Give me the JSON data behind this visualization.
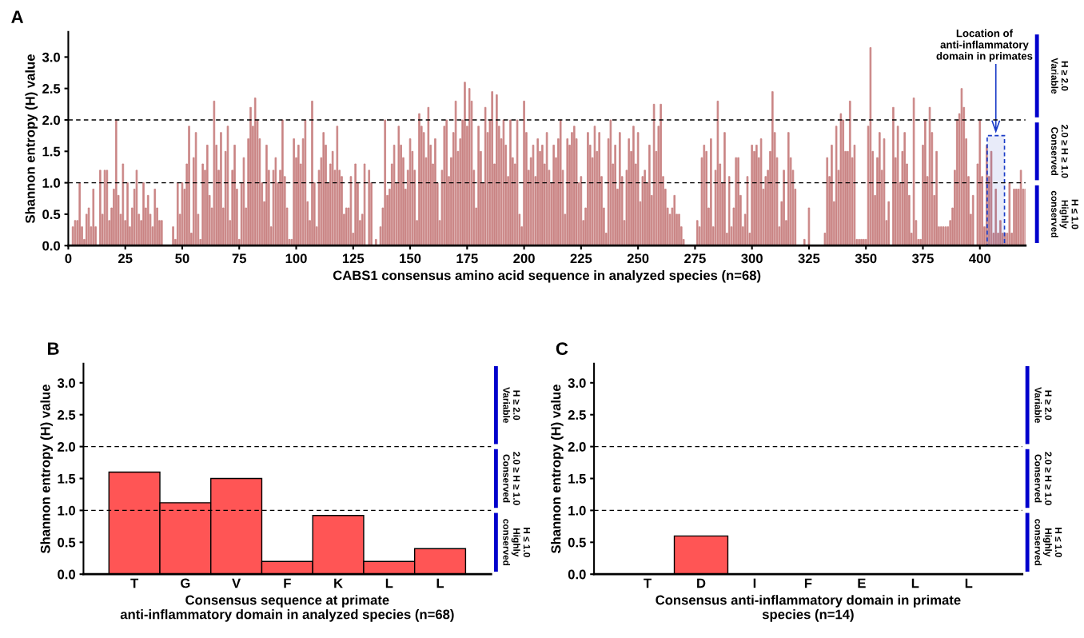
{
  "chart_data": [
    {
      "type": "bar",
      "title": "A",
      "xlabel": "CABS1 consensus amino acid sequence in analyzed species (n=68)",
      "ylabel": "Shannon entropy (H) value",
      "color": "#b85c5c",
      "x": [
        1,
        2,
        3,
        4,
        5,
        6,
        7,
        8,
        9,
        10,
        11,
        12,
        13,
        14,
        15,
        16,
        17,
        18,
        19,
        20,
        21,
        22,
        23,
        24,
        25,
        26,
        27,
        28,
        29,
        30,
        31,
        32,
        33,
        34,
        35,
        36,
        37,
        38,
        39,
        40,
        41,
        42,
        43,
        44,
        45,
        46,
        47,
        48,
        49,
        50,
        51,
        52,
        53,
        54,
        55,
        56,
        57,
        58,
        59,
        60,
        61,
        62,
        63,
        64,
        65,
        66,
        67,
        68,
        69,
        70,
        71,
        72,
        73,
        74,
        75,
        76,
        77,
        78,
        79,
        80,
        81,
        82,
        83,
        84,
        85,
        86,
        87,
        88,
        89,
        90,
        91,
        92,
        93,
        94,
        95,
        96,
        97,
        98,
        99,
        100,
        101,
        102,
        103,
        104,
        105,
        106,
        107,
        108,
        109,
        110,
        111,
        112,
        113,
        114,
        115,
        116,
        117,
        118,
        119,
        120,
        121,
        122,
        123,
        124,
        125,
        126,
        127,
        128,
        129,
        130,
        131,
        132,
        133,
        134,
        135,
        136,
        137,
        138,
        139,
        140,
        141,
        142,
        143,
        144,
        145,
        146,
        147,
        148,
        149,
        150,
        151,
        152,
        153,
        154,
        155,
        156,
        157,
        158,
        159,
        160,
        161,
        162,
        163,
        164,
        165,
        166,
        167,
        168,
        169,
        170,
        171,
        172,
        173,
        174,
        175,
        176,
        177,
        178,
        179,
        180,
        181,
        182,
        183,
        184,
        185,
        186,
        187,
        188,
        189,
        190,
        191,
        192,
        193,
        194,
        195,
        196,
        197,
        198,
        199,
        200,
        201,
        202,
        203,
        204,
        205,
        206,
        207,
        208,
        209,
        210,
        211,
        212,
        213,
        214,
        215,
        216,
        217,
        218,
        219,
        220,
        221,
        222,
        223,
        224,
        225,
        226,
        227,
        228,
        229,
        230,
        231,
        232,
        233,
        234,
        235,
        236,
        237,
        238,
        239,
        240,
        241,
        242,
        243,
        244,
        245,
        246,
        247,
        248,
        249,
        250,
        251,
        252,
        253,
        254,
        255,
        256,
        257,
        258,
        259,
        260,
        261,
        262,
        263,
        264,
        265,
        266,
        267,
        268,
        269,
        270,
        271,
        272,
        273,
        274,
        275,
        276,
        277,
        278,
        279,
        280,
        281,
        282,
        283,
        284,
        285,
        286,
        287,
        288,
        289,
        290,
        291,
        292,
        293,
        294,
        295,
        296,
        297,
        298,
        299,
        300,
        301,
        302,
        303,
        304,
        305,
        306,
        307,
        308,
        309,
        310,
        311,
        312,
        313,
        314,
        315,
        316,
        317,
        318,
        319,
        320,
        321,
        322,
        323,
        324,
        325,
        326,
        327,
        328,
        329,
        330,
        331,
        332,
        333,
        334,
        335,
        336,
        337,
        338,
        339,
        340,
        341,
        342,
        343,
        344,
        345,
        346,
        347,
        348,
        349,
        350,
        351,
        352,
        353,
        354,
        355,
        356,
        357,
        358,
        359,
        360,
        361,
        362,
        363,
        364,
        365,
        366,
        367,
        368,
        369,
        370,
        371,
        372,
        373,
        374,
        375,
        376,
        377,
        378,
        379,
        380,
        381,
        382,
        383,
        384,
        385,
        386,
        387,
        388,
        389,
        390,
        391,
        392,
        393,
        394,
        395,
        396,
        397,
        398,
        399,
        400,
        401,
        402,
        403,
        404,
        405,
        406,
        407,
        408,
        409,
        410,
        411,
        412,
        413,
        414,
        415,
        416,
        417,
        418,
        419,
        420
      ],
      "values": [
        0.0,
        0.3,
        0.4,
        0.4,
        1.0,
        0.3,
        0.1,
        0.5,
        0.6,
        0.3,
        0.9,
        0.3,
        0.0,
        1.2,
        0.5,
        1.2,
        1.2,
        0.4,
        0.6,
        0.9,
        2.0,
        0.8,
        0.5,
        1.3,
        0.4,
        1.0,
        0.3,
        0.6,
        0.9,
        1.2,
        0.5,
        0.4,
        1.0,
        0.6,
        0.8,
        0.5,
        0.3,
        0.9,
        0.6,
        0.4,
        0.4,
        0.0,
        0.0,
        0.0,
        0.0,
        0.3,
        0.1,
        1.0,
        0.5,
        1.0,
        0.9,
        1.3,
        1.9,
        0.2,
        1.4,
        1.8,
        0.5,
        0.1,
        1.3,
        1.2,
        1.6,
        0.8,
        0.6,
        2.3,
        1.6,
        1.2,
        1.8,
        0.6,
        1.5,
        1.9,
        0.4,
        1.2,
        1.6,
        0.9,
        0.1,
        1.0,
        1.4,
        0.6,
        1.7,
        2.2,
        1.9,
        2.35,
        2.0,
        1.7,
        1.0,
        0.7,
        1.6,
        1.2,
        0.3,
        1.2,
        1.4,
        1.0,
        1.2,
        2.0,
        1.1,
        0.6,
        0.1,
        0.1,
        1.7,
        1.4,
        1.6,
        1.3,
        1.7,
        2.0,
        0.7,
        0.4,
        2.3,
        1.0,
        0.3,
        1.2,
        1.4,
        1.8,
        1.6,
        1.0,
        1.3,
        1.5,
        1.2,
        1.9,
        1.2,
        1.1,
        0.5,
        0.6,
        0.6,
        1.1,
        0.2,
        1.3,
        1.0,
        0.4,
        0.5,
        1.3,
        0.0,
        1.2,
        1.0,
        0.0,
        0.1,
        0.0,
        0.3,
        0.6,
        2.0,
        0.8,
        0.9,
        1.3,
        1.6,
        1.0,
        1.9,
        1.6,
        1.4,
        0.9,
        1.2,
        1.7,
        1.5,
        1.2,
        0.4,
        2.1,
        1.9,
        1.8,
        1.4,
        2.2,
        1.6,
        1.3,
        1.7,
        1.0,
        0.4,
        1.2,
        1.9,
        2.0,
        1.1,
        1.4,
        1.8,
        2.3,
        1.5,
        1.7,
        2.0,
        2.6,
        1.9,
        2.5,
        2.3,
        1.2,
        0.6,
        1.9,
        1.5,
        1.0,
        2.2,
        1.8,
        2.0,
        2.45,
        1.3,
        2.4,
        1.9,
        1.7,
        2.0,
        1.6,
        1.1,
        2.0,
        1.4,
        1.3,
        2.0,
        0.5,
        0.3,
        2.3,
        1.8,
        1.2,
        1.4,
        1.6,
        1.1,
        1.7,
        1.5,
        1.6,
        1.3,
        1.8,
        1.2,
        1.0,
        1.6,
        1.4,
        1.7,
        2.0,
        1.2,
        0.5,
        1.7,
        1.6,
        1.8,
        1.9,
        1.7,
        1.0,
        1.1,
        0.4,
        0.6,
        1.8,
        1.6,
        1.4,
        1.9,
        1.5,
        1.8,
        1.1,
        0.6,
        0.2,
        1.7,
        2.0,
        1.3,
        1.6,
        0.9,
        1.8,
        1.1,
        0.4,
        1.2,
        1.7,
        1.5,
        1.9,
        1.3,
        1.8,
        0.7,
        1.1,
        1.2,
        1.0,
        1.6,
        0.8,
        2.25,
        1.5,
        1.9,
        2.25,
        1.1,
        0.9,
        0.6,
        0.5,
        0.6,
        0.8,
        0.5,
        0.5,
        0.3,
        0.1,
        0.0,
        0.0,
        0.0,
        0.0,
        0.0,
        0.4,
        0.3,
        1.4,
        1.6,
        1.5,
        0.6,
        1.7,
        0.3,
        1.2,
        2.3,
        1.3,
        1.0,
        1.8,
        0.2,
        1.1,
        0.3,
        0.6,
        1.4,
        1.4,
        0.8,
        0.3,
        0.5,
        1.1,
        0.2,
        1.6,
        1.5,
        1.6,
        1.4,
        1.7,
        0.9,
        1.1,
        1.2,
        1.5,
        2.45,
        1.8,
        1.4,
        0.3,
        0.7,
        1.2,
        0.4,
        1.8,
        1.4,
        1.2,
        0.9,
        0.0,
        0.0,
        0.0,
        0.1,
        0.0,
        0.6,
        0.0,
        0.0,
        0.0,
        0.0,
        0.0,
        0.0,
        0.2,
        1.4,
        1.1,
        1.6,
        0.7,
        1.9,
        1.2,
        2.1,
        2.0,
        1.5,
        1.5,
        2.3,
        1.4,
        1.6,
        0.1,
        0.1,
        0.1,
        0.1,
        0.1,
        1.9,
        3.15,
        1.5,
        0.8,
        1.4,
        1.8,
        1.2,
        1.7,
        0.4,
        0.7,
        0.0,
        2.2,
        1.4,
        1.9,
        1.0,
        1.5,
        1.8,
        1.3,
        0.8,
        0.2,
        2.35,
        0.4,
        0.1,
        0.1,
        1.6,
        2.0,
        1.1,
        2.2,
        1.8,
        0.8,
        1.5,
        0.3,
        0.3,
        0.3,
        0.3,
        0.3,
        0.4,
        0.6,
        1.2,
        2.0,
        2.1,
        2.5,
        2.2,
        1.7,
        1.1,
        0.5,
        0.8,
        0.0,
        1.3,
        2.0,
        1.1,
        0.3,
        1.6,
        1.1,
        1.5,
        0.2,
        0.9,
        0.2,
        0.4,
        0.2,
        0.2,
        0.2,
        1.0,
        0.2,
        0.9,
        0.9,
        0.9,
        1.2,
        0.9,
        0.9
      ],
      "xlim": [
        0,
        420
      ],
      "xticks": [
        0,
        25,
        50,
        75,
        100,
        125,
        150,
        175,
        200,
        225,
        250,
        275,
        300,
        325,
        350,
        375,
        400
      ],
      "ylim": [
        0,
        3.4
      ],
      "yticks": [
        {
          "value": 0,
          "label": "0.0"
        },
        {
          "value": 0.5,
          "label": "0.5"
        },
        {
          "value": 1,
          "label": "1.0"
        },
        {
          "value": 1.5,
          "label": "1.5"
        },
        {
          "value": 2,
          "label": "2.0"
        },
        {
          "value": 2.5,
          "label": "2.5"
        },
        {
          "value": 3,
          "label": "3.0"
        }
      ],
      "ref_lines": [
        {
          "axis": "y",
          "value": 1.0,
          "label": null,
          "line_style": "dashed",
          "color": "#000000"
        },
        {
          "axis": "y",
          "value": 2.0,
          "label": null,
          "line_style": "dashed",
          "color": "#000000"
        }
      ],
      "bands": [
        {
          "axis": "x",
          "from": 403.2,
          "to": 410.8,
          "label": null,
          "color": "#1a3cc8"
        }
      ],
      "annotations": [
        "Location of\nanti-inflammatory\ndomain in primates",
        "H ≥ 2.0\nVariable",
        "2.0 ≥ H ≥ 1.0\nConserved",
        "H ≤ 1.0\nHighly\nconserved"
      ],
      "grid": false,
      "legend": false
    },
    {
      "type": "bar",
      "title": "B",
      "xlabel": "Consensus sequence at primate\nanti-inflammatory domain in analyzed species (n=68)",
      "ylabel": "Shannon entropy (H) value",
      "color": "#ff5555",
      "categories": [
        "T",
        "G",
        "V",
        "F",
        "K",
        "L",
        "L"
      ],
      "values": [
        1.6,
        1.12,
        1.5,
        0.2,
        0.92,
        0.2,
        0.4
      ],
      "ylim": [
        0,
        3.3
      ],
      "yticks": [
        {
          "value": 0,
          "label": "0.0"
        },
        {
          "value": 0.5,
          "label": "0.5"
        },
        {
          "value": 1,
          "label": "1.0"
        },
        {
          "value": 1.5,
          "label": "1.5"
        },
        {
          "value": 2,
          "label": "2.0"
        },
        {
          "value": 2.5,
          "label": "2.5"
        },
        {
          "value": 3,
          "label": "3.0"
        }
      ],
      "ref_lines": [
        {
          "axis": "y",
          "value": 1.0,
          "label": null,
          "line_style": "dashed",
          "color": "#000000"
        },
        {
          "axis": "y",
          "value": 2.0,
          "label": null,
          "line_style": "dashed",
          "color": "#000000"
        }
      ],
      "annotations": [
        "H ≥ 2.0\nVariable",
        "2.0 ≥ H ≥ 1.0\nConserved",
        "H ≤ 1.0\nHighly\nconserved"
      ],
      "grid": false,
      "legend": false
    },
    {
      "type": "bar",
      "title": "C",
      "xlabel": "Consensus anti-inflammatory domain in primate\nspecies (n=14)",
      "ylabel": "Shannon entropy (H) value",
      "color": "#ff5555",
      "categories": [
        "T",
        "D",
        "I",
        "F",
        "E",
        "L",
        "L"
      ],
      "values": [
        0,
        0.6,
        0,
        0,
        0,
        0,
        0
      ],
      "ylim": [
        0,
        3.3
      ],
      "yticks": [
        {
          "value": 0,
          "label": "0.0"
        },
        {
          "value": 0.5,
          "label": "0.5"
        },
        {
          "value": 1,
          "label": "1.0"
        },
        {
          "value": 1.5,
          "label": "1.5"
        },
        {
          "value": 2,
          "label": "2.0"
        },
        {
          "value": 2.5,
          "label": "2.5"
        },
        {
          "value": 3,
          "label": "3.0"
        }
      ],
      "ref_lines": [
        {
          "axis": "y",
          "value": 1.0,
          "label": null,
          "line_style": "dashed",
          "color": "#000000"
        },
        {
          "axis": "y",
          "value": 2.0,
          "label": null,
          "line_style": "dashed",
          "color": "#000000"
        }
      ],
      "annotations": [
        "H ≥ 2.0\nVariable",
        "2.0 ≥ H ≥ 1.0\nConserved",
        "H ≤ 1.0\nHighly\nconserved"
      ],
      "grid": false,
      "legend": false
    }
  ]
}
